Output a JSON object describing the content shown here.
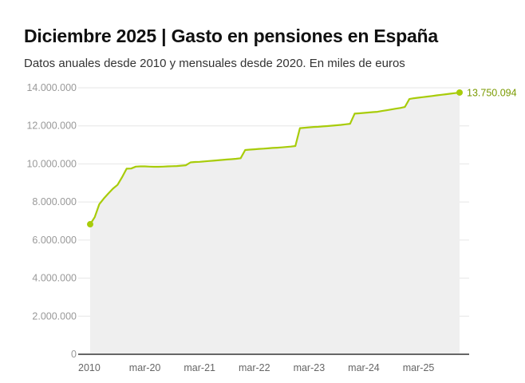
{
  "chart_data": {
    "type": "area",
    "title": "Diciembre 2025 | Gasto en pensiones en España",
    "subtitle": "Datos anuales desde 2010 y mensuales desde 2020. En miles de euros",
    "xlabel": "",
    "ylabel": "",
    "ylim": [
      0,
      14000000
    ],
    "yticks": [
      0,
      2000000,
      4000000,
      6000000,
      8000000,
      10000000,
      12000000,
      14000000
    ],
    "ytick_labels": [
      "0",
      "2.000.000",
      "4.000.000",
      "6.000.000",
      "8.000.000",
      "10.000.000",
      "12.000.000",
      "14.000.000"
    ],
    "xtick_labels": [
      {
        "label": "2010",
        "category": "2010"
      },
      {
        "label": "mar-20",
        "category": "mar-20"
      },
      {
        "label": "mar-21",
        "category": "mar-21"
      },
      {
        "label": "mar-22",
        "category": "mar-22"
      },
      {
        "label": "mar-23",
        "category": "mar-23"
      },
      {
        "label": "mar-24",
        "category": "mar-24"
      },
      {
        "label": "mar-25",
        "category": "mar-25"
      }
    ],
    "grid": true,
    "end_label": "13.750.094",
    "colors": {
      "line": "#a8cc0a",
      "fill": "#efefef",
      "label": "#7a9a00",
      "grid": "#e6e6e6",
      "axis": "#666666"
    },
    "categories": [
      "2010",
      "2011",
      "2012",
      "2013",
      "2014",
      "2015",
      "2016",
      "2017",
      "2018",
      "2019",
      "ene-20",
      "feb-20",
      "mar-20",
      "abr-20",
      "may-20",
      "jun-20",
      "jul-20",
      "ago-20",
      "sep-20",
      "oct-20",
      "nov-20",
      "dic-20",
      "ene-21",
      "feb-21",
      "mar-21",
      "abr-21",
      "may-21",
      "jun-21",
      "jul-21",
      "ago-21",
      "sep-21",
      "oct-21",
      "nov-21",
      "dic-21",
      "ene-22",
      "feb-22",
      "mar-22",
      "abr-22",
      "may-22",
      "jun-22",
      "jul-22",
      "ago-22",
      "sep-22",
      "oct-22",
      "nov-22",
      "dic-22",
      "ene-23",
      "feb-23",
      "mar-23",
      "abr-23",
      "may-23",
      "jun-23",
      "jul-23",
      "ago-23",
      "sep-23",
      "oct-23",
      "nov-23",
      "dic-23",
      "ene-24",
      "feb-24",
      "mar-24",
      "abr-24",
      "may-24",
      "jun-24",
      "jul-24",
      "ago-24",
      "sep-24",
      "oct-24",
      "nov-24",
      "dic-24",
      "ene-25",
      "feb-25",
      "mar-25",
      "abr-25",
      "may-25",
      "jun-25",
      "jul-25",
      "ago-25",
      "sep-25",
      "oct-25",
      "nov-25",
      "dic-25"
    ],
    "values": [
      6830000,
      7200000,
      7880000,
      8180000,
      8450000,
      8700000,
      8900000,
      9300000,
      9750000,
      9760000,
      9860000,
      9870000,
      9870000,
      9860000,
      9850000,
      9850000,
      9860000,
      9870000,
      9880000,
      9890000,
      9910000,
      9930000,
      10080000,
      10100000,
      10110000,
      10130000,
      10150000,
      10170000,
      10190000,
      10210000,
      10230000,
      10250000,
      10270000,
      10300000,
      10730000,
      10750000,
      10770000,
      10790000,
      10800000,
      10820000,
      10840000,
      10850000,
      10870000,
      10890000,
      10910000,
      10940000,
      11880000,
      11900000,
      11920000,
      11940000,
      11950000,
      11970000,
      11990000,
      12010000,
      12030000,
      12050000,
      12080000,
      12110000,
      12640000,
      12660000,
      12680000,
      12700000,
      12720000,
      12740000,
      12780000,
      12820000,
      12860000,
      12900000,
      12940000,
      12990000,
      13410000,
      13450000,
      13480000,
      13510000,
      13540000,
      13570000,
      13600000,
      13630000,
      13660000,
      13690000,
      13720000,
      13750094
    ]
  }
}
